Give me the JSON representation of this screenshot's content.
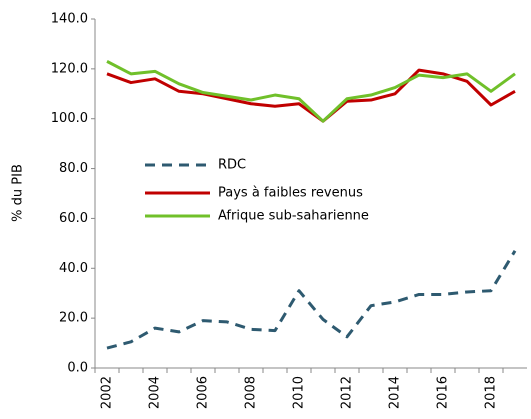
{
  "chart_data": {
    "type": "line",
    "y_label": "% du PIB",
    "categories": [
      "2002",
      null,
      "2004",
      null,
      "2006",
      null,
      "2008",
      null,
      "2010",
      null,
      "2012",
      null,
      "2014",
      null,
      "2016",
      null,
      "2018",
      null
    ],
    "series": [
      {
        "name": "RDC",
        "color": "#2e5a70",
        "style": "dashed",
        "values": [
          8,
          10.5,
          16,
          14.5,
          19,
          18.5,
          15.5,
          15,
          31,
          19.5,
          12.5,
          25,
          26.5,
          29.5,
          29.5,
          30.5,
          31,
          47
        ]
      },
      {
        "name": "Pays à faibles revenus",
        "color": "#c00000",
        "style": "solid",
        "values": [
          118,
          114.5,
          116,
          111,
          110,
          108,
          106,
          105,
          106,
          99,
          107,
          107.5,
          110,
          119.5,
          118,
          115,
          105.5,
          111
        ]
      },
      {
        "name": "Afrique sub-saharienne",
        "color": "#70c02a",
        "style": "solid",
        "values": [
          123,
          118,
          119,
          114,
          110.5,
          109,
          107.5,
          109.5,
          108,
          99,
          108,
          109.5,
          112.5,
          117.5,
          116.5,
          118,
          111,
          118
        ]
      }
    ],
    "ylim": [
      0,
      140
    ],
    "yticks": [
      {
        "value": 0,
        "label": "0.0"
      },
      {
        "value": 20,
        "label": "20.0"
      },
      {
        "value": 40,
        "label": "40.0"
      },
      {
        "value": 60,
        "label": "60.0"
      },
      {
        "value": 80,
        "label": "80.0"
      },
      {
        "value": 100,
        "label": "100.0"
      },
      {
        "value": 120,
        "label": "120.0"
      },
      {
        "value": 140,
        "label": "140.0"
      }
    ],
    "grid": false
  }
}
